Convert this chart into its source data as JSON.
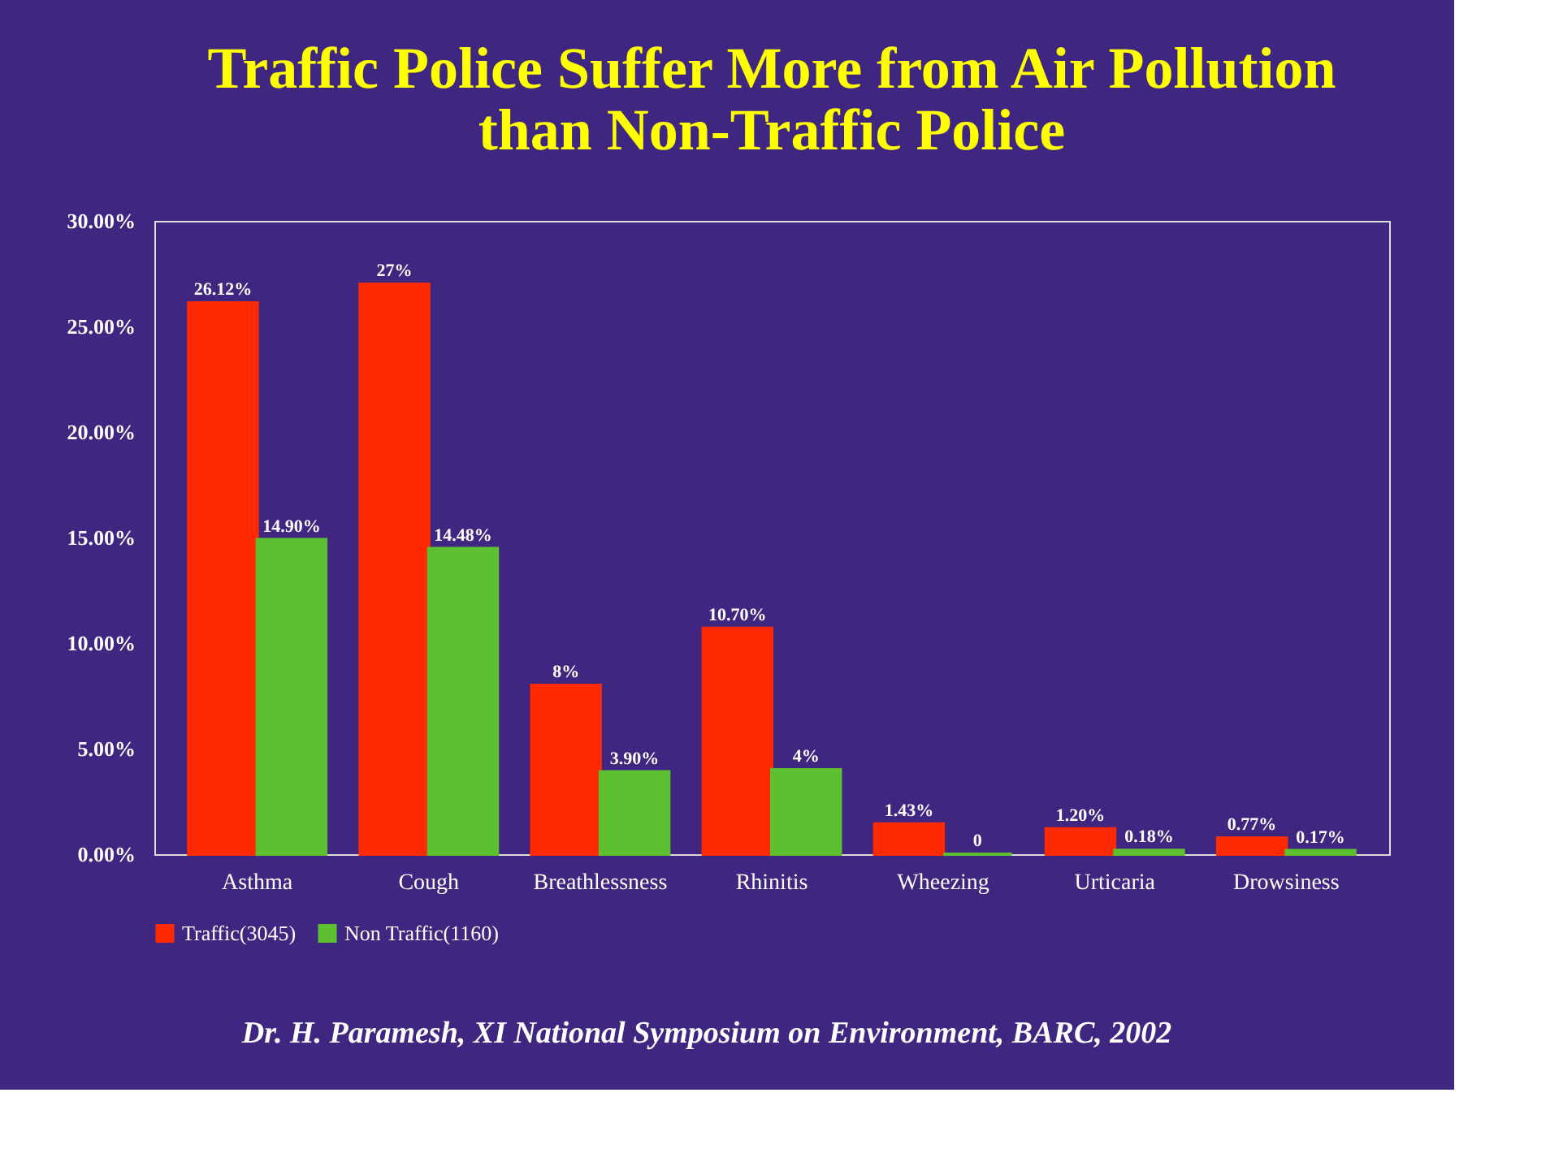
{
  "chart_data": {
    "type": "bar",
    "title": [
      "Traffic Police Suffer More from Air Pollution",
      "than Non-Traffic Police"
    ],
    "categories": [
      "Asthma",
      "Cough",
      "Breathlessness",
      "Rhinitis",
      "Wheezing",
      "Urticaria",
      "Drowsiness"
    ],
    "series": [
      {
        "name": "Traffic(3045)",
        "color": "#ff2a00",
        "values": [
          26.12,
          27,
          8,
          10.7,
          1.43,
          1.2,
          0.77
        ],
        "value_labels": [
          "26.12%",
          "27%",
          "8%",
          "10.70%",
          "1.43%",
          "1.20%",
          "0.77%"
        ]
      },
      {
        "name": "Non Traffic(1160)",
        "color": "#5cc030",
        "values": [
          14.9,
          14.48,
          3.9,
          4,
          0,
          0.18,
          0.17
        ],
        "value_labels": [
          "14.90%",
          "14.48%",
          "3.90%",
          "4%",
          "0",
          "0.18%",
          "0.17%"
        ]
      }
    ],
    "ylim": [
      0,
      30
    ],
    "yticks": [
      {
        "value": 0,
        "label": "0.00%"
      },
      {
        "value": 5,
        "label": "5.00%"
      },
      {
        "value": 10,
        "label": "10.00%"
      },
      {
        "value": 15,
        "label": "15.00%"
      },
      {
        "value": 20,
        "label": "20.00%"
      },
      {
        "value": 25,
        "label": "25.00%"
      },
      {
        "value": 30,
        "label": "30.00%"
      }
    ],
    "grid": false,
    "legend": "bottom",
    "annotations": [
      "Dr. H. Paramesh, XI National Symposium on Environment, BARC, 2002"
    ]
  }
}
